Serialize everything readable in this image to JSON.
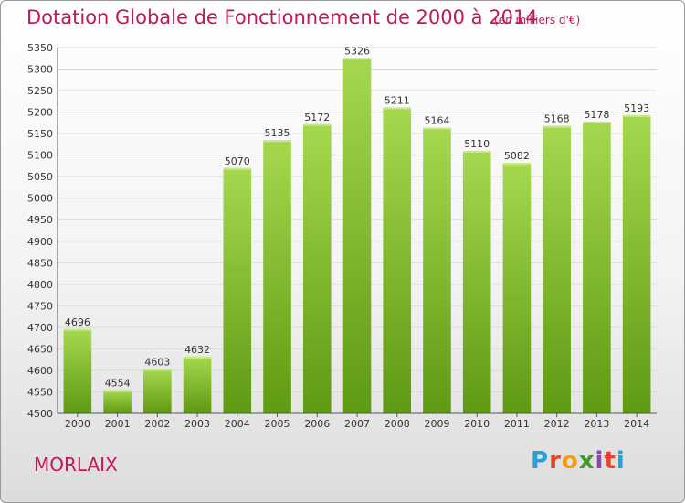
{
  "header": {
    "title": "Dotation Globale de Fonctionnement de 2000 à 2014",
    "subtitle": "(en milliers d'€)"
  },
  "footer": {
    "commune": "MORLAIX",
    "logo_text": "Proxiti"
  },
  "colors": {
    "title": "#c2185b",
    "bar_top": "#a6d84f",
    "bar_bottom": "#5e9a12",
    "grid": "#d9d9d9"
  },
  "chart_data": {
    "type": "bar",
    "title": "Dotation Globale de Fonctionnement de 2000 à 2014",
    "subtitle": "(en milliers d'€)",
    "xlabel": "",
    "ylabel": "",
    "categories": [
      "2000",
      "2001",
      "2002",
      "2003",
      "2004",
      "2005",
      "2006",
      "2007",
      "2008",
      "2009",
      "2010",
      "2011",
      "2012",
      "2013",
      "2014"
    ],
    "values": [
      4696,
      4554,
      4603,
      4632,
      5070,
      5135,
      5172,
      5326,
      5211,
      5164,
      5110,
      5082,
      5168,
      5178,
      5193
    ],
    "ylim": [
      4500,
      5350
    ],
    "yticks": [
      4500,
      4550,
      4600,
      4650,
      4700,
      4750,
      4800,
      4850,
      4900,
      4950,
      5000,
      5050,
      5100,
      5150,
      5200,
      5250,
      5300,
      5350
    ],
    "grid": true,
    "data_labels": true
  }
}
